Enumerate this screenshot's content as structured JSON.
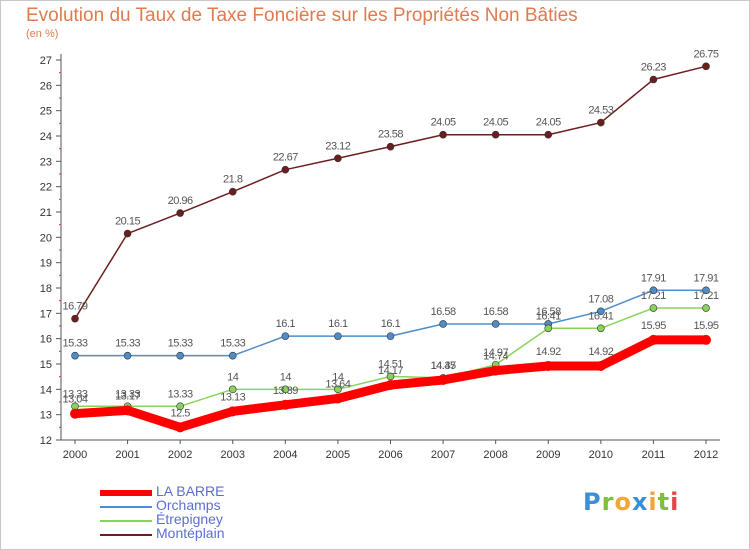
{
  "chart_data": {
    "type": "line",
    "title": "Evolution du Taux de Taxe Foncière sur les Propriétés Non Bâties",
    "ylabel": "(en %)",
    "xlabel": "",
    "ylim": [
      12,
      27
    ],
    "yticks": [
      "12",
      "13",
      "14",
      "15",
      "16",
      "17",
      "18",
      "19",
      "20",
      "21",
      "22",
      "23",
      "24",
      "25",
      "26",
      "27"
    ],
    "categories": [
      "2000",
      "2001",
      "2002",
      "2003",
      "2004",
      "2005",
      "2006",
      "2007",
      "2008",
      "2009",
      "2010",
      "2011",
      "2012"
    ],
    "series": [
      {
        "name": "Montéplain",
        "color": "#6b1e1e",
        "values": [
          16.79,
          20.15,
          20.96,
          21.8,
          22.67,
          23.12,
          23.58,
          24.05,
          24.05,
          24.05,
          24.53,
          26.23,
          26.75
        ],
        "labels": [
          "16.79",
          "20.15",
          "20.96",
          "21.8",
          "22.67",
          "23.12",
          "23.58",
          "24.05",
          "24.05",
          "24.05",
          "24.53",
          "26.23",
          "26.75"
        ]
      },
      {
        "name": "Orchamps",
        "color": "#4f8dc9",
        "values": [
          15.33,
          15.33,
          15.33,
          15.33,
          16.1,
          16.1,
          16.1,
          16.58,
          16.58,
          16.58,
          17.08,
          17.91,
          17.91
        ],
        "labels": [
          "15.33",
          "15.33",
          "15.33",
          "15.33",
          "16.1",
          "16.1",
          "16.1",
          "16.58",
          "16.58",
          "16.58",
          "17.08",
          "17.91",
          "17.91"
        ]
      },
      {
        "name": "Étrepigney",
        "color": "#8ad35b",
        "values": [
          13.33,
          13.33,
          13.33,
          14,
          14,
          14,
          14.51,
          14.45,
          14.97,
          16.41,
          16.41,
          17.21,
          17.21
        ],
        "labels": [
          "13.33",
          "13.33",
          "13.33",
          "14",
          "14",
          "14",
          "14.51",
          "14.45",
          "14.97",
          "16.41",
          "16.41",
          "17.21",
          "17.21"
        ]
      },
      {
        "name": "LA BARRE",
        "color": "#ff0000",
        "values": [
          13.04,
          13.17,
          12.5,
          13.13,
          13.39,
          13.64,
          14.17,
          14.37,
          14.74,
          14.92,
          14.92,
          15.95,
          15.95
        ],
        "labels": [
          "13.04",
          "13.17",
          "12.5",
          "13.13",
          "13.39",
          "13.64",
          "14.17",
          "14.37",
          "14.74",
          "14.92",
          "14.92",
          "15.95",
          "15.95"
        ]
      }
    ],
    "legend": [
      "LA BARRE",
      "Orchamps",
      "Étrepigney",
      "Montéplain"
    ],
    "legend_position": "bottom-left",
    "grid": false
  },
  "brand": {
    "logo_letters": [
      "P",
      "r",
      "o",
      "x",
      "i",
      "t",
      "i"
    ]
  }
}
